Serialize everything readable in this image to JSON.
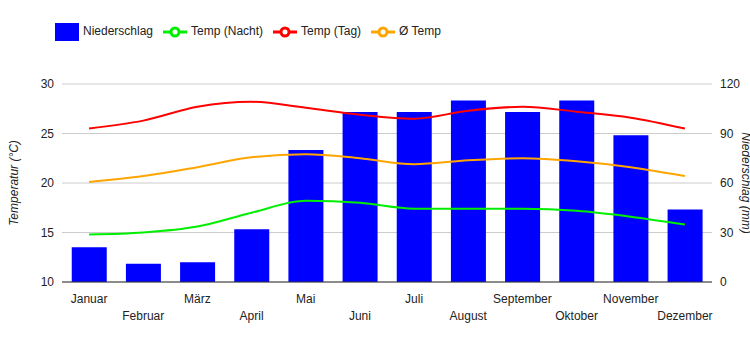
{
  "chart_data": {
    "type": "combo",
    "categories": [
      "Januar",
      "Februar",
      "März",
      "April",
      "Mai",
      "Juni",
      "Juli",
      "August",
      "September",
      "Oktober",
      "November",
      "Dezember"
    ],
    "series": [
      {
        "name": "Niederschlag",
        "type": "bar",
        "axis": "y2",
        "color": "#0000ff",
        "values": [
          21,
          11,
          12,
          32,
          80,
          103,
          103,
          110,
          103,
          110,
          89,
          44
        ]
      },
      {
        "name": "Temp (Tag)",
        "type": "line",
        "color": "#ff0000",
        "values": [
          25.5,
          26.3,
          27.7,
          28.2,
          27.6,
          26.9,
          26.5,
          27.3,
          27.7,
          27.2,
          26.6,
          25.5
        ]
      },
      {
        "name": "Ø Temp",
        "type": "line",
        "color": "#ffa500",
        "values": [
          20.1,
          20.7,
          21.6,
          22.6,
          22.9,
          22.5,
          21.9,
          22.3,
          22.5,
          22.2,
          21.6,
          20.7
        ]
      },
      {
        "name": "Temp (Nacht)",
        "type": "line",
        "color": "#00ee00",
        "values": [
          14.8,
          15.0,
          15.6,
          17.0,
          18.2,
          18.0,
          17.4,
          17.4,
          17.4,
          17.2,
          16.6,
          15.8
        ]
      }
    ],
    "y_label": "Temperatur (°C)",
    "y2_label": "Niederschlag (mm)",
    "ylim": [
      10,
      30
    ],
    "yticks": [
      10,
      15,
      20,
      25,
      30
    ],
    "y2lim": [
      0,
      120
    ],
    "y2ticks": [
      0,
      30,
      60,
      90,
      120
    ],
    "grid": true,
    "legend": "top left"
  }
}
